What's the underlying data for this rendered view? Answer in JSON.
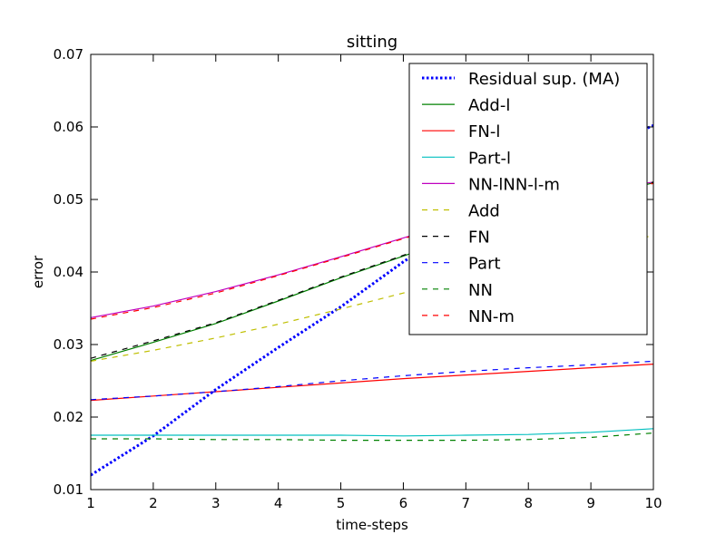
{
  "chart_data": {
    "type": "line",
    "title": "sitting",
    "xlabel": "time-steps",
    "ylabel": "error",
    "xlim": [
      1,
      10
    ],
    "ylim": [
      0.01,
      0.07
    ],
    "x_ticks": [
      "1",
      "2",
      "3",
      "4",
      "5",
      "6",
      "7",
      "8",
      "9",
      "10"
    ],
    "y_ticks": [
      "0.01",
      "0.02",
      "0.03",
      "0.04",
      "0.05",
      "0.06",
      "0.07"
    ],
    "grid": false,
    "legend_position": "top-right",
    "x": [
      1,
      2,
      3,
      4,
      5,
      6,
      7,
      8,
      9,
      10
    ],
    "series": [
      {
        "name": "Residual sup. (MA)",
        "color": "#0000ff",
        "style": "dotted",
        "values": [
          0.012,
          0.0174,
          0.0238,
          0.0296,
          0.0352,
          0.0414,
          0.047,
          0.0522,
          0.0566,
          0.0602
        ]
      },
      {
        "name": "Add-l",
        "color": "#008000",
        "style": "solid",
        "values": [
          0.0278,
          0.0303,
          0.0329,
          0.036,
          0.0392,
          0.0422,
          0.0452,
          0.0478,
          0.0502,
          0.0523
        ]
      },
      {
        "name": "FN-l",
        "color": "#ff0000",
        "style": "solid",
        "values": [
          0.0223,
          0.0229,
          0.0235,
          0.0241,
          0.0247,
          0.0253,
          0.0258,
          0.0263,
          0.0268,
          0.0273
        ]
      },
      {
        "name": "Part-l",
        "color": "#00bfbf",
        "style": "solid",
        "values": [
          0.0175,
          0.0175,
          0.0175,
          0.0175,
          0.0175,
          0.0174,
          0.0175,
          0.0176,
          0.0179,
          0.0184
        ]
      },
      {
        "name": "NN-lNN-l-m",
        "color": "#bf00bf",
        "style": "solid",
        "values": [
          0.0337,
          0.0353,
          0.0373,
          0.0396,
          0.0421,
          0.0447,
          0.0473,
          0.0495,
          0.0511,
          0.0524
        ]
      },
      {
        "name": "Add",
        "color": "#bfbf00",
        "style": "dashed",
        "values": [
          0.0277,
          0.0292,
          0.0309,
          0.0328,
          0.0349,
          0.0371,
          0.0394,
          0.0416,
          0.0435,
          0.045
        ]
      },
      {
        "name": "FN",
        "color": "#000000",
        "style": "dashed",
        "values": [
          0.0281,
          0.0305,
          0.033,
          0.0361,
          0.0393,
          0.0423,
          0.0453,
          0.0479,
          0.0503,
          0.0524
        ]
      },
      {
        "name": "Part",
        "color": "#0000ff",
        "style": "dashed",
        "values": [
          0.0224,
          0.0229,
          0.0235,
          0.0242,
          0.025,
          0.0257,
          0.0263,
          0.0268,
          0.0272,
          0.0277
        ]
      },
      {
        "name": "NN",
        "color": "#008000",
        "style": "dashed",
        "values": [
          0.017,
          0.017,
          0.0169,
          0.0169,
          0.0168,
          0.0168,
          0.0168,
          0.0169,
          0.0172,
          0.0178
        ]
      },
      {
        "name": "NN-m",
        "color": "#ff0000",
        "style": "dashed",
        "values": [
          0.0335,
          0.0351,
          0.0371,
          0.0395,
          0.042,
          0.0446,
          0.0472,
          0.0494,
          0.051,
          0.0522
        ]
      }
    ]
  }
}
